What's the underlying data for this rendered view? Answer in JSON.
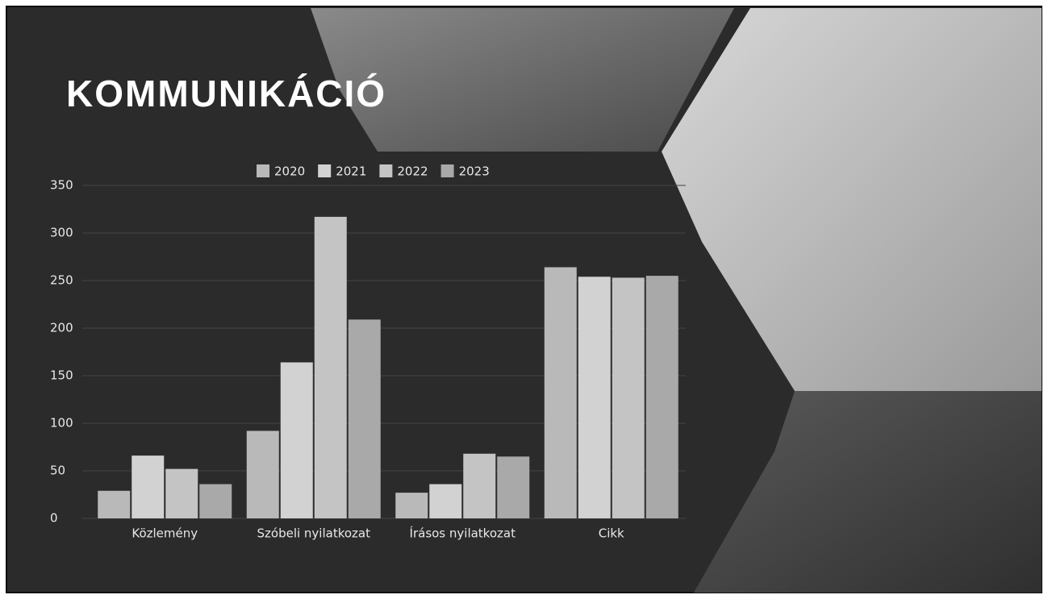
{
  "chart_data": {
    "type": "bar",
    "title": "KOMMUNIKÁCIÓ",
    "categories": [
      "Közlemény",
      "Szóbeli nyilatkozat",
      "Írásos nyilatkozat",
      "Cikk"
    ],
    "series": [
      {
        "name": "2020",
        "color": "#b9b9b9",
        "values": [
          29,
          92,
          27,
          264
        ]
      },
      {
        "name": "2021",
        "color": "#d2d2d2",
        "values": [
          66,
          164,
          36,
          254
        ]
      },
      {
        "name": "2022",
        "color": "#c4c4c4",
        "values": [
          52,
          317,
          68,
          253
        ]
      },
      {
        "name": "2023",
        "color": "#a9a9a9",
        "values": [
          36,
          209,
          65,
          255
        ]
      }
    ],
    "ylim": [
      0,
      350
    ],
    "yticks": [
      0,
      50,
      100,
      150,
      200,
      250,
      300,
      350
    ],
    "grid": true
  }
}
